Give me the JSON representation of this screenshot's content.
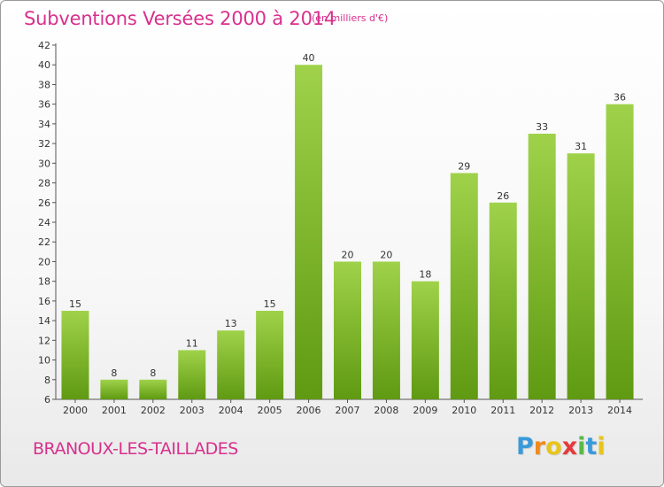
{
  "header": {
    "title": "Subventions Versées 2000 à 2014",
    "subtitle": "(en milliers d'€)"
  },
  "footer": {
    "commune": "BRANOUX-LES-TAILLADES",
    "logo": [
      "P",
      "r",
      "o",
      "x",
      "i",
      "t",
      "i"
    ],
    "logo_colors": [
      "#3a9ad9",
      "#f08a1c",
      "#e8c51a",
      "#e33b3b",
      "#58b947",
      "#3a9ad9",
      "#e8c51a"
    ]
  },
  "colors": {
    "bar_top": "#9fd24a",
    "bar_bottom": "#5f9a12",
    "accent": "#d8308d"
  },
  "chart_data": {
    "type": "bar",
    "categories": [
      "2000",
      "2001",
      "2002",
      "2003",
      "2004",
      "2005",
      "2006",
      "2007",
      "2008",
      "2009",
      "2010",
      "2011",
      "2012",
      "2013",
      "2014"
    ],
    "values": [
      15,
      8,
      8,
      11,
      13,
      15,
      40,
      20,
      20,
      18,
      29,
      26,
      33,
      31,
      36
    ],
    "ylim": [
      6,
      42
    ],
    "yticks": [
      6,
      8,
      10,
      12,
      14,
      16,
      18,
      20,
      22,
      24,
      26,
      28,
      30,
      32,
      34,
      36,
      38,
      40,
      42
    ],
    "grid": false,
    "legend": "none"
  }
}
